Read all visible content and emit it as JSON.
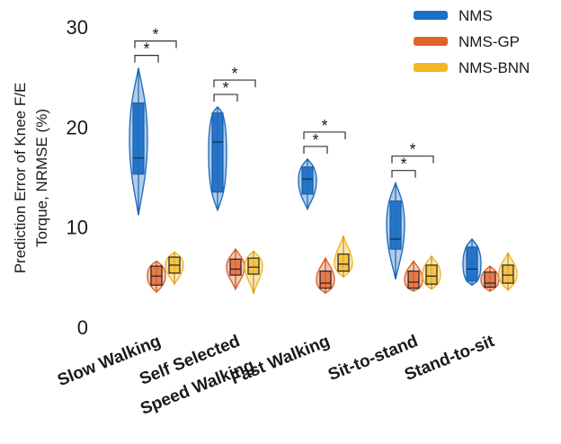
{
  "chart_data": {
    "type": "violin",
    "ylabel_line1": "Prediction Error of Knee F/E",
    "ylabel_line2": "Torque, NRMSE (%)",
    "ylim": [
      0,
      30
    ],
    "yticks": [
      "0",
      "10",
      "20",
      "30"
    ],
    "categories": [
      {
        "line1": "Slow Walking",
        "line2": ""
      },
      {
        "line1": "Self Selected",
        "line2": "Speed Walking"
      },
      {
        "line1": "Fast Walking",
        "line2": ""
      },
      {
        "line1": "Sit-to-stand",
        "line2": ""
      },
      {
        "line1": "Stand-to-sit",
        "line2": ""
      }
    ],
    "series": [
      {
        "name": "NMS",
        "color": "#1f6fc4",
        "box_color": "#1d5fa8",
        "values": [
          {
            "min": 11.2,
            "q1": 15.3,
            "median": 16.9,
            "q3": 22.4,
            "max": 25.9
          },
          {
            "min": 11.7,
            "q1": 13.5,
            "median": 18.5,
            "q3": 21.4,
            "max": 22.0
          },
          {
            "min": 11.8,
            "q1": 13.3,
            "median": 14.8,
            "q3": 16.0,
            "max": 16.8
          },
          {
            "min": 4.8,
            "q1": 7.8,
            "median": 8.8,
            "q3": 12.6,
            "max": 14.4
          },
          {
            "min": 4.2,
            "q1": 4.6,
            "median": 5.8,
            "q3": 8.0,
            "max": 8.8
          }
        ]
      },
      {
        "name": "NMS-GP",
        "color": "#e0622a",
        "box_color": "#c94e1d",
        "values": [
          {
            "min": 3.5,
            "q1": 4.2,
            "median": 5.1,
            "q3": 6.1,
            "max": 6.6
          },
          {
            "min": 3.8,
            "q1": 5.2,
            "median": 5.8,
            "q3": 6.8,
            "max": 7.8
          },
          {
            "min": 3.4,
            "q1": 3.9,
            "median": 4.4,
            "q3": 5.6,
            "max": 6.9
          },
          {
            "min": 3.6,
            "q1": 3.9,
            "median": 4.5,
            "q3": 5.6,
            "max": 6.6
          },
          {
            "min": 3.6,
            "q1": 4.0,
            "median": 4.4,
            "q3": 5.5,
            "max": 6.1
          }
        ]
      },
      {
        "name": "NMS-BNN",
        "color": "#f2b825",
        "box_color": "#c98f10",
        "values": [
          {
            "min": 4.3,
            "q1": 5.4,
            "median": 6.2,
            "q3": 7.0,
            "max": 7.5
          },
          {
            "min": 3.4,
            "q1": 5.3,
            "median": 6.0,
            "q3": 6.9,
            "max": 7.6
          },
          {
            "min": 5.0,
            "q1": 5.6,
            "median": 6.3,
            "q3": 7.3,
            "max": 9.1
          },
          {
            "min": 3.8,
            "q1": 4.3,
            "median": 5.1,
            "q3": 6.2,
            "max": 7.1
          },
          {
            "min": 3.7,
            "q1": 4.4,
            "median": 5.2,
            "q3": 6.2,
            "max": 7.4
          }
        ]
      }
    ],
    "significance": [
      {
        "category": 0,
        "pairs": [
          [
            "NMS",
            "NMS-GP"
          ],
          [
            "NMS",
            "NMS-BNN"
          ]
        ],
        "labels": [
          "*",
          "*"
        ]
      },
      {
        "category": 1,
        "pairs": [
          [
            "NMS",
            "NMS-GP"
          ],
          [
            "NMS",
            "NMS-BNN"
          ]
        ],
        "labels": [
          "*",
          "*"
        ]
      },
      {
        "category": 2,
        "pairs": [
          [
            "NMS",
            "NMS-GP"
          ],
          [
            "NMS",
            "NMS-BNN"
          ]
        ],
        "labels": [
          "*",
          "*"
        ]
      },
      {
        "category": 3,
        "pairs": [
          [
            "NMS",
            "NMS-GP"
          ],
          [
            "NMS",
            "NMS-BNN"
          ]
        ],
        "labels": [
          "*",
          "*"
        ]
      }
    ],
    "legend_position": "top-right"
  }
}
